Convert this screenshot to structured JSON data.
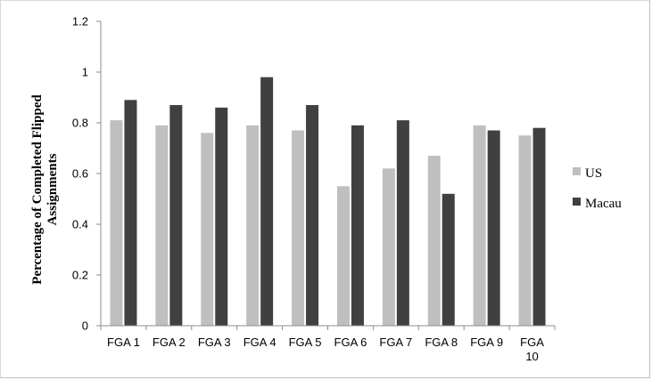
{
  "chart_data": {
    "type": "bar",
    "title": "",
    "xlabel": "",
    "ylabel": "Percentage of Completed Flipped Assignments",
    "ylim": [
      0,
      1.2
    ],
    "yticks": [
      "0",
      "0.2",
      "0.4",
      "0.6",
      "0.8",
      "1",
      "1.2"
    ],
    "grid": false,
    "legend_position": "right",
    "categories": [
      [
        "FGA 1"
      ],
      [
        "FGA 2"
      ],
      [
        "FGA 3"
      ],
      [
        "FGA 4"
      ],
      [
        "FGA 5"
      ],
      [
        "FGA 6"
      ],
      [
        "FGA 7"
      ],
      [
        "FGA 8"
      ],
      [
        "FGA 9"
      ],
      [
        "FGA",
        "10"
      ]
    ],
    "series": [
      {
        "name": "US",
        "color": "#bfbfbf",
        "values": [
          0.81,
          0.79,
          0.76,
          0.79,
          0.77,
          0.55,
          0.62,
          0.67,
          0.79,
          0.75
        ]
      },
      {
        "name": "Macau",
        "color": "#404040",
        "values": [
          0.89,
          0.87,
          0.86,
          0.98,
          0.87,
          0.79,
          0.81,
          0.52,
          0.77,
          0.78
        ]
      }
    ]
  }
}
